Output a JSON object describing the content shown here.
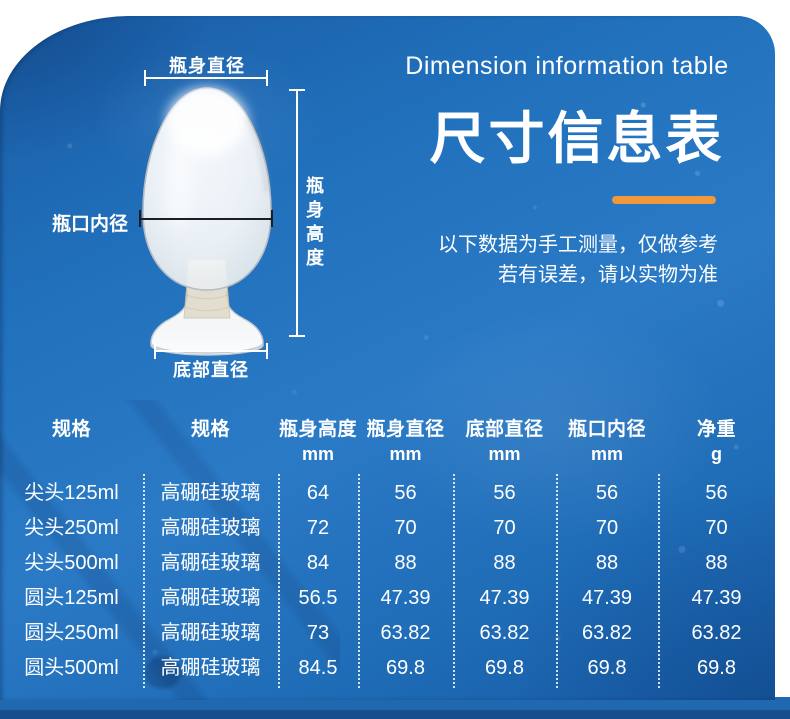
{
  "colors": {
    "panel_blue": "#2171bd",
    "accent_orange": "#f0983c",
    "measure_line_dark": "#1e1e1e",
    "footer_blue": "#2068b0",
    "footer_dark_blue": "#174f92",
    "text_white": "#ffffff"
  },
  "hero": {
    "title_en": "Dimension information table",
    "title_zh": "尺寸信息表",
    "note_line1": "以下数据为手工测量，仅做参考",
    "note_line2": "若有误差，请以实物为准"
  },
  "diagram": {
    "label_top": "瓶身直径",
    "label_left": "瓶口内径",
    "label_right": "瓶身高度",
    "label_bottom": "底部直径"
  },
  "table": {
    "columns": [
      {
        "label": "规格",
        "unit": ""
      },
      {
        "label": "规格",
        "unit": ""
      },
      {
        "label": "瓶身高度",
        "unit": "mm"
      },
      {
        "label": "瓶身直径",
        "unit": "mm"
      },
      {
        "label": "底部直径",
        "unit": "mm"
      },
      {
        "label": "瓶口内径",
        "unit": "mm"
      },
      {
        "label": "净重",
        "unit": "g"
      }
    ],
    "rows": [
      [
        "尖头125ml",
        "高硼硅玻璃",
        "64",
        "56",
        "56",
        "56",
        "56"
      ],
      [
        "尖头250ml",
        "高硼硅玻璃",
        "72",
        "70",
        "70",
        "70",
        "70"
      ],
      [
        "尖头500ml",
        "高硼硅玻璃",
        "84",
        "88",
        "88",
        "88",
        "88"
      ],
      [
        "圆头125ml",
        "高硼硅玻璃",
        "56.5",
        "47.39",
        "47.39",
        "47.39",
        "47.39"
      ],
      [
        "圆头250ml",
        "高硼硅玻璃",
        "73",
        "63.82",
        "63.82",
        "63.82",
        "63.82"
      ],
      [
        "圆头500ml",
        "高硼硅玻璃",
        "84.5",
        "69.8",
        "69.8",
        "69.8",
        "69.8"
      ]
    ]
  }
}
